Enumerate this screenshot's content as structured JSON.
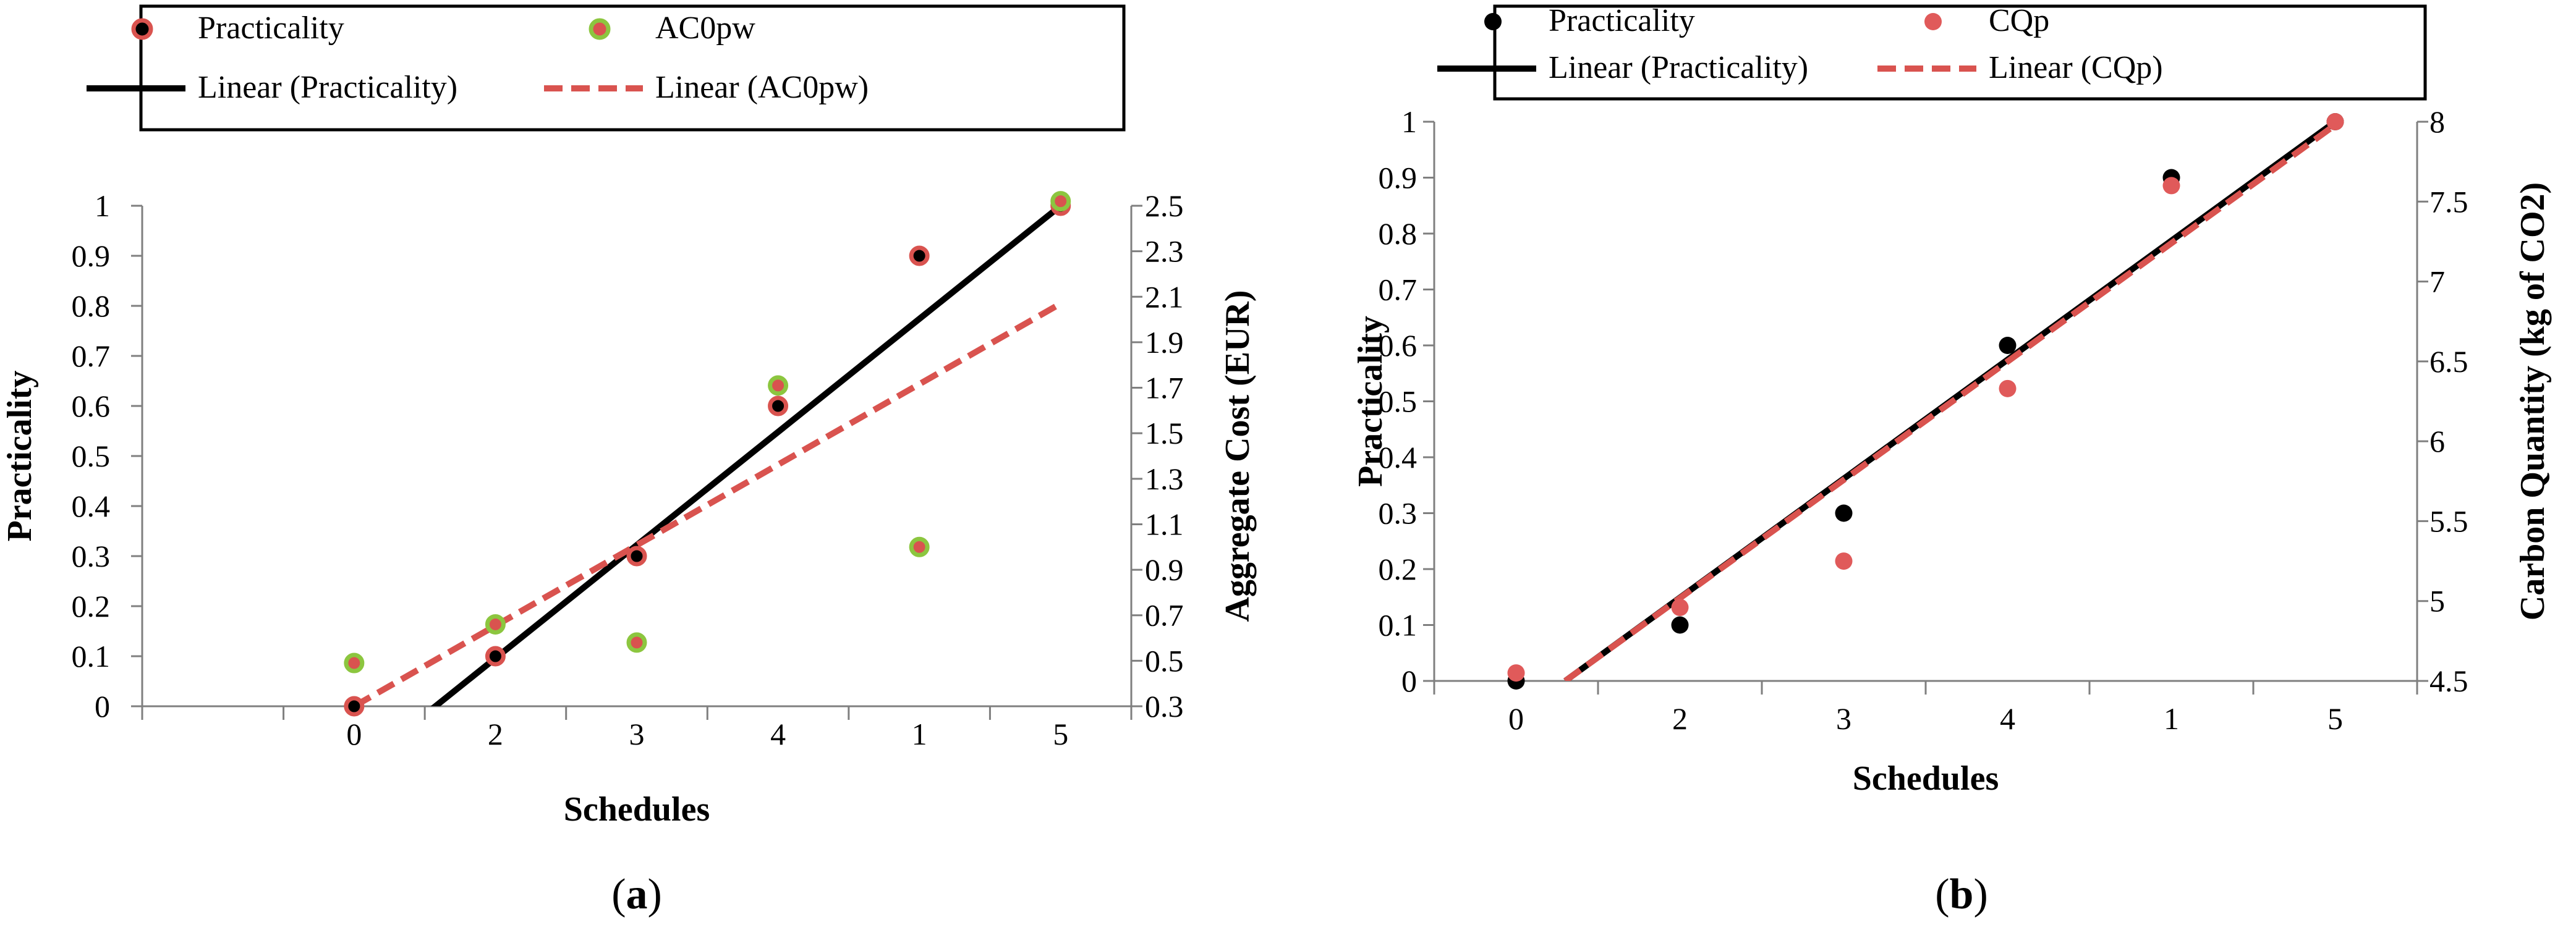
{
  "chart_data": [
    {
      "panel": "a",
      "type": "scatter",
      "categories": [
        "0",
        "2",
        "3",
        "4",
        "1",
        "5"
      ],
      "xlabel": "Schedules",
      "ylabel": "Practicality",
      "y2label": "Aggregate Cost (EUR)",
      "ylim": [
        0,
        1
      ],
      "y_ticks": [
        "0",
        "0.1",
        "0.2",
        "0.3",
        "0.4",
        "0.5",
        "0.6",
        "0.7",
        "0.8",
        "0.9",
        "1"
      ],
      "y2lim": [
        0.3,
        2.5
      ],
      "y2_ticks": [
        "0.3",
        "0.5",
        "0.7",
        "0.9",
        "1.1",
        "1.3",
        "1.5",
        "1.7",
        "1.9",
        "2.1",
        "2.3",
        "2.5"
      ],
      "series": [
        {
          "name": "Practicality",
          "axis": "left",
          "marker_fill": "#000000",
          "marker_edge": "#d9534f",
          "values": [
            0,
            0.1,
            0.3,
            0.6,
            0.9,
            1.0
          ]
        },
        {
          "name": "AC0pw",
          "axis": "right",
          "marker_fill": "#d9534f",
          "marker_edge": "#8cc63f",
          "values": [
            0.49,
            0.66,
            0.58,
            1.71,
            1.0,
            2.52
          ]
        }
      ],
      "trendlines": [
        {
          "name": "Linear (Practicality)",
          "color": "#000000",
          "dash": "solid",
          "axis": "left",
          "start": [
            1,
            -0.13
          ],
          "end": [
            6,
            1.0
          ]
        },
        {
          "name": "Linear (AC0pw)",
          "color": "#d9534f",
          "dash": "dashed",
          "axis": "right",
          "start": [
            1,
            0.3
          ],
          "end": [
            6,
            2.07
          ]
        }
      ],
      "legend": [
        "Practicality",
        "AC0pw",
        "Linear (Practicality)",
        "Linear (AC0pw)"
      ],
      "legend_position": "top",
      "panel_label": "a"
    },
    {
      "panel": "b",
      "type": "scatter",
      "categories": [
        "0",
        "2",
        "3",
        "4",
        "1",
        "5"
      ],
      "xlabel": "Schedules",
      "ylabel": "Practicality",
      "y2label": "Carbon Quantity (kg of CO2)",
      "ylim": [
        0,
        1
      ],
      "y_ticks": [
        "0",
        "0.1",
        "0.2",
        "0.3",
        "0.4",
        "0.5",
        "0.6",
        "0.7",
        "0.8",
        "0.9",
        "1"
      ],
      "y2lim": [
        4.5,
        8
      ],
      "y2_ticks": [
        "4.5",
        "5",
        "5.5",
        "6",
        "6.5",
        "7",
        "7.5",
        "8"
      ],
      "series": [
        {
          "name": "Practicality",
          "axis": "left",
          "marker_fill": "#000000",
          "values": [
            0,
            0.1,
            0.3,
            0.6,
            0.9,
            1.0
          ]
        },
        {
          "name": "CQp",
          "axis": "right",
          "marker_fill": "#e05a5a",
          "values": [
            4.55,
            4.96,
            5.25,
            6.33,
            7.6,
            8.0
          ]
        }
      ],
      "trendlines": [
        {
          "name": "Linear (Practicality)",
          "color": "#000000",
          "dash": "solid",
          "axis": "left",
          "start": [
            1.3,
            0
          ],
          "end": [
            6,
            1.0
          ]
        },
        {
          "name": "Linear (CQp)",
          "color": "#d9534f",
          "dash": "dashed",
          "axis": "right",
          "start": [
            1.3,
            4.5
          ],
          "end": [
            6,
            7.98
          ]
        }
      ],
      "legend": [
        "Practicality",
        "CQp",
        "Linear (Practicality)",
        "Linear (CQp)"
      ],
      "legend_position": "top",
      "panel_label": "b"
    }
  ]
}
